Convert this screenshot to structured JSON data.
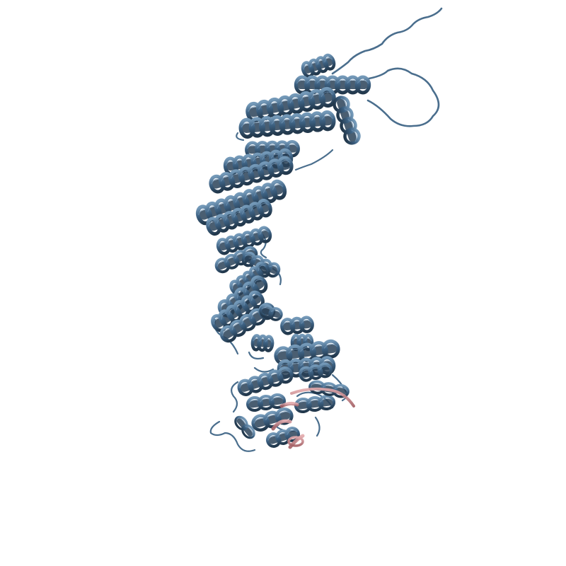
{
  "scene": {
    "subject": "protein-ribbon-structure",
    "background_color": "#ffffff",
    "colors": {
      "helix_main": "#3b5f7d",
      "helix_dark": "#2a4258",
      "helix_light": "#6f93b3",
      "loop": "#4a6e8d",
      "strand_highlight": "#c98a8e",
      "strand_highlight_dark": "#a86468"
    }
  }
}
